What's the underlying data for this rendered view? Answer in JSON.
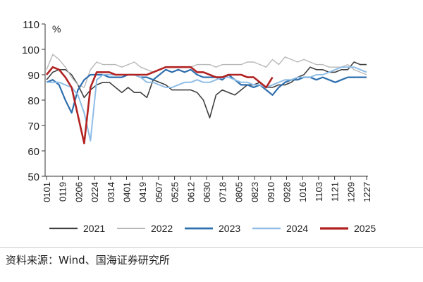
{
  "chart_data": {
    "type": "line",
    "title": "",
    "ylabel": "%",
    "xlabel": "",
    "ylim": [
      50,
      110
    ],
    "yticks": [
      50,
      60,
      70,
      80,
      90,
      100,
      110
    ],
    "xtick_labels": [
      "0101",
      "0119",
      "0206",
      "0224",
      "0314",
      "0401",
      "0419",
      "0507",
      "0525",
      "0612",
      "0630",
      "0718",
      "0805",
      "0823",
      "0910",
      "0928",
      "1016",
      "1103",
      "1121",
      "1209",
      "1227"
    ],
    "x_unit": "week of year",
    "legend_position": "bottom",
    "grid": false,
    "series": [
      {
        "name": "2021",
        "color": "#404040",
        "width": 1.6,
        "values": [
          88,
          91,
          92,
          92,
          90,
          86,
          81,
          84,
          86,
          87,
          87,
          85,
          83,
          85,
          83,
          83,
          81,
          88,
          87,
          86,
          84,
          84,
          84,
          84,
          83,
          80,
          73,
          82,
          84,
          83,
          82,
          84,
          86,
          86,
          87,
          85,
          85,
          86,
          86,
          87,
          89,
          90,
          93,
          92,
          92,
          91,
          91,
          92,
          92,
          95,
          94,
          94
        ]
      },
      {
        "name": "2022",
        "color": "#b8b8b8",
        "width": 1.4,
        "values": [
          92,
          98,
          96,
          93,
          89,
          86,
          85,
          92,
          95,
          94,
          94,
          94,
          93,
          94,
          95,
          93,
          92,
          91,
          92,
          93,
          93,
          93,
          93,
          93,
          94,
          94,
          94,
          93,
          94,
          94,
          94,
          94,
          95,
          95,
          94,
          93,
          96,
          94,
          97,
          96,
          95,
          96,
          95,
          94,
          94,
          93,
          93,
          93,
          94,
          92,
          91,
          90
        ]
      },
      {
        "name": "2023",
        "color": "#2e6fae",
        "width": 2.2,
        "values": [
          87,
          88,
          86,
          80,
          75,
          84,
          88,
          90,
          90,
          90,
          89,
          89,
          89,
          90,
          90,
          89,
          89,
          88,
          90,
          92,
          91,
          92,
          91,
          92,
          90,
          89,
          89,
          89,
          88,
          90,
          88,
          86,
          86,
          85,
          86,
          84,
          82,
          85,
          87,
          88,
          88,
          89,
          89,
          88,
          89,
          88,
          87,
          88,
          89,
          89,
          89,
          89
        ]
      },
      {
        "name": "2024",
        "color": "#8fbde6",
        "width": 2,
        "values": [
          87,
          87,
          87,
          86,
          85,
          82,
          75,
          64,
          88,
          90,
          90,
          90,
          90,
          90,
          90,
          89,
          87,
          87,
          86,
          85,
          85,
          86,
          87,
          87,
          88,
          87,
          87,
          88,
          89,
          89,
          88,
          87,
          87,
          86,
          86,
          85,
          86,
          87,
          88,
          88,
          89,
          89,
          89,
          90,
          90,
          91,
          92,
          93,
          93,
          93,
          92,
          91
        ]
      },
      {
        "name": "2025",
        "color": "#b22222",
        "width": 2.6,
        "values": [
          90,
          93,
          92,
          89,
          85,
          74,
          63,
          85,
          91,
          91,
          91,
          90,
          90,
          90,
          90,
          90,
          90,
          91,
          92,
          93,
          93,
          93,
          93,
          93,
          91,
          91,
          90,
          89,
          89,
          90,
          90,
          90,
          89,
          89,
          87,
          85,
          89
        ]
      }
    ]
  },
  "source": "资料来源：Wind、国海证券研究所"
}
